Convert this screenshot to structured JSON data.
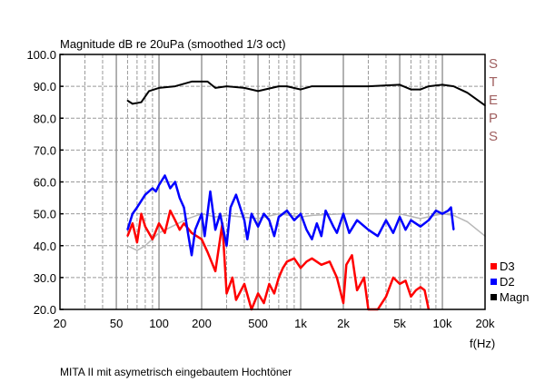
{
  "chart_data": {
    "type": "line",
    "title": "Magnitude dB re 20uPa (smoothed  1/3 oct)",
    "xlabel": "f(Hz)",
    "ylabel": "",
    "xscale": "log",
    "xlim": [
      20,
      20000
    ],
    "ylim": [
      20,
      100
    ],
    "yticks": [
      "20.0",
      "30.0",
      "40.0",
      "50.0",
      "60.0",
      "70.0",
      "80.0",
      "90.0",
      "100.0"
    ],
    "xticks": [
      {
        "v": 20,
        "label": "20"
      },
      {
        "v": 50,
        "label": "50"
      },
      {
        "v": 100,
        "label": "100"
      },
      {
        "v": 200,
        "label": "200"
      },
      {
        "v": 500,
        "label": "500"
      },
      {
        "v": 1000,
        "label": "1k"
      },
      {
        "v": 2000,
        "label": "2k"
      },
      {
        "v": 5000,
        "label": "5k"
      },
      {
        "v": 10000,
        "label": "10k"
      },
      {
        "v": 20000,
        "label": "20k"
      }
    ],
    "grid": true,
    "legend_position": "bottom-right",
    "side_label": "STEPS",
    "caption": "MITA II mit asymetrisch eingebautem Hochtöner",
    "series": [
      {
        "name": "reference",
        "legend": false,
        "color": "#b8b8b8",
        "points": [
          [
            60,
            40
          ],
          [
            70,
            38.5
          ],
          [
            80,
            40
          ],
          [
            100,
            44
          ],
          [
            130,
            46.5
          ],
          [
            160,
            48.5
          ],
          [
            200,
            50
          ],
          [
            250,
            49
          ],
          [
            300,
            49.5
          ],
          [
            500,
            48.5
          ],
          [
            700,
            50
          ],
          [
            1000,
            49
          ],
          [
            1200,
            49.5
          ],
          [
            2000,
            50
          ],
          [
            5000,
            50
          ],
          [
            7000,
            48.5
          ],
          [
            10000,
            50
          ],
          [
            12000,
            49.5
          ],
          [
            15000,
            47.5
          ],
          [
            20000,
            43
          ]
        ]
      },
      {
        "name": "D3",
        "legend": true,
        "color": "#ff0000",
        "points": [
          [
            60,
            43
          ],
          [
            65,
            47
          ],
          [
            70,
            41
          ],
          [
            75,
            50
          ],
          [
            80,
            46
          ],
          [
            90,
            42
          ],
          [
            100,
            47
          ],
          [
            110,
            44
          ],
          [
            120,
            51
          ],
          [
            130,
            48
          ],
          [
            140,
            45
          ],
          [
            150,
            47
          ],
          [
            170,
            44
          ],
          [
            200,
            42
          ],
          [
            220,
            38
          ],
          [
            250,
            32
          ],
          [
            280,
            47
          ],
          [
            300,
            25
          ],
          [
            330,
            30
          ],
          [
            350,
            23
          ],
          [
            400,
            28
          ],
          [
            450,
            20
          ],
          [
            500,
            25
          ],
          [
            550,
            22
          ],
          [
            600,
            28
          ],
          [
            650,
            25
          ],
          [
            700,
            30
          ],
          [
            750,
            33
          ],
          [
            800,
            35
          ],
          [
            900,
            36
          ],
          [
            1000,
            33
          ],
          [
            1100,
            35
          ],
          [
            1200,
            36
          ],
          [
            1400,
            34
          ],
          [
            1600,
            35
          ],
          [
            1800,
            30
          ],
          [
            2000,
            22
          ],
          [
            2100,
            34
          ],
          [
            2300,
            37
          ],
          [
            2500,
            26
          ],
          [
            2800,
            30
          ],
          [
            3000,
            20
          ],
          [
            3500,
            20
          ],
          [
            4000,
            24
          ],
          [
            4500,
            30
          ],
          [
            5000,
            28
          ],
          [
            5500,
            29
          ],
          [
            6000,
            24
          ],
          [
            6500,
            26
          ],
          [
            7000,
            27
          ],
          [
            7500,
            26
          ],
          [
            8000,
            20
          ]
        ]
      },
      {
        "name": "D2",
        "legend": true,
        "color": "#0000ff",
        "points": [
          [
            60,
            45
          ],
          [
            65,
            50
          ],
          [
            70,
            52
          ],
          [
            80,
            56
          ],
          [
            90,
            58
          ],
          [
            95,
            57
          ],
          [
            100,
            59
          ],
          [
            110,
            62
          ],
          [
            120,
            58
          ],
          [
            130,
            60
          ],
          [
            140,
            55
          ],
          [
            150,
            52
          ],
          [
            160,
            44
          ],
          [
            170,
            37
          ],
          [
            180,
            45
          ],
          [
            200,
            50
          ],
          [
            210,
            43
          ],
          [
            230,
            57
          ],
          [
            250,
            45
          ],
          [
            270,
            50
          ],
          [
            300,
            40
          ],
          [
            320,
            52
          ],
          [
            350,
            56
          ],
          [
            400,
            48
          ],
          [
            420,
            42
          ],
          [
            450,
            50
          ],
          [
            500,
            46
          ],
          [
            550,
            50
          ],
          [
            600,
            48
          ],
          [
            650,
            43
          ],
          [
            700,
            49
          ],
          [
            800,
            51
          ],
          [
            900,
            48
          ],
          [
            1000,
            50
          ],
          [
            1100,
            45
          ],
          [
            1200,
            42
          ],
          [
            1300,
            47
          ],
          [
            1400,
            43
          ],
          [
            1500,
            51
          ],
          [
            1700,
            46
          ],
          [
            1800,
            44
          ],
          [
            2000,
            50
          ],
          [
            2200,
            44
          ],
          [
            2500,
            48
          ],
          [
            3000,
            45
          ],
          [
            3500,
            43
          ],
          [
            4000,
            48
          ],
          [
            4500,
            44
          ],
          [
            5000,
            49
          ],
          [
            5500,
            45
          ],
          [
            6000,
            48
          ],
          [
            7000,
            46
          ],
          [
            8000,
            48
          ],
          [
            9000,
            51
          ],
          [
            10000,
            50
          ],
          [
            11000,
            51
          ],
          [
            11500,
            52
          ],
          [
            12000,
            45
          ]
        ]
      },
      {
        "name": "Magn",
        "legend": true,
        "color": "#000000",
        "points": [
          [
            60,
            85.5
          ],
          [
            65,
            84.5
          ],
          [
            75,
            85
          ],
          [
            85,
            88.5
          ],
          [
            100,
            89.5
          ],
          [
            130,
            90
          ],
          [
            170,
            91.5
          ],
          [
            220,
            91.5
          ],
          [
            250,
            89.5
          ],
          [
            300,
            90
          ],
          [
            400,
            89.5
          ],
          [
            500,
            88.5
          ],
          [
            700,
            90
          ],
          [
            800,
            90
          ],
          [
            1000,
            89
          ],
          [
            1200,
            90
          ],
          [
            2000,
            90
          ],
          [
            3000,
            90
          ],
          [
            5000,
            90.5
          ],
          [
            6000,
            89
          ],
          [
            7000,
            89
          ],
          [
            8000,
            90
          ],
          [
            10000,
            90.5
          ],
          [
            12000,
            90
          ],
          [
            15000,
            88
          ],
          [
            20000,
            84
          ]
        ]
      }
    ]
  }
}
